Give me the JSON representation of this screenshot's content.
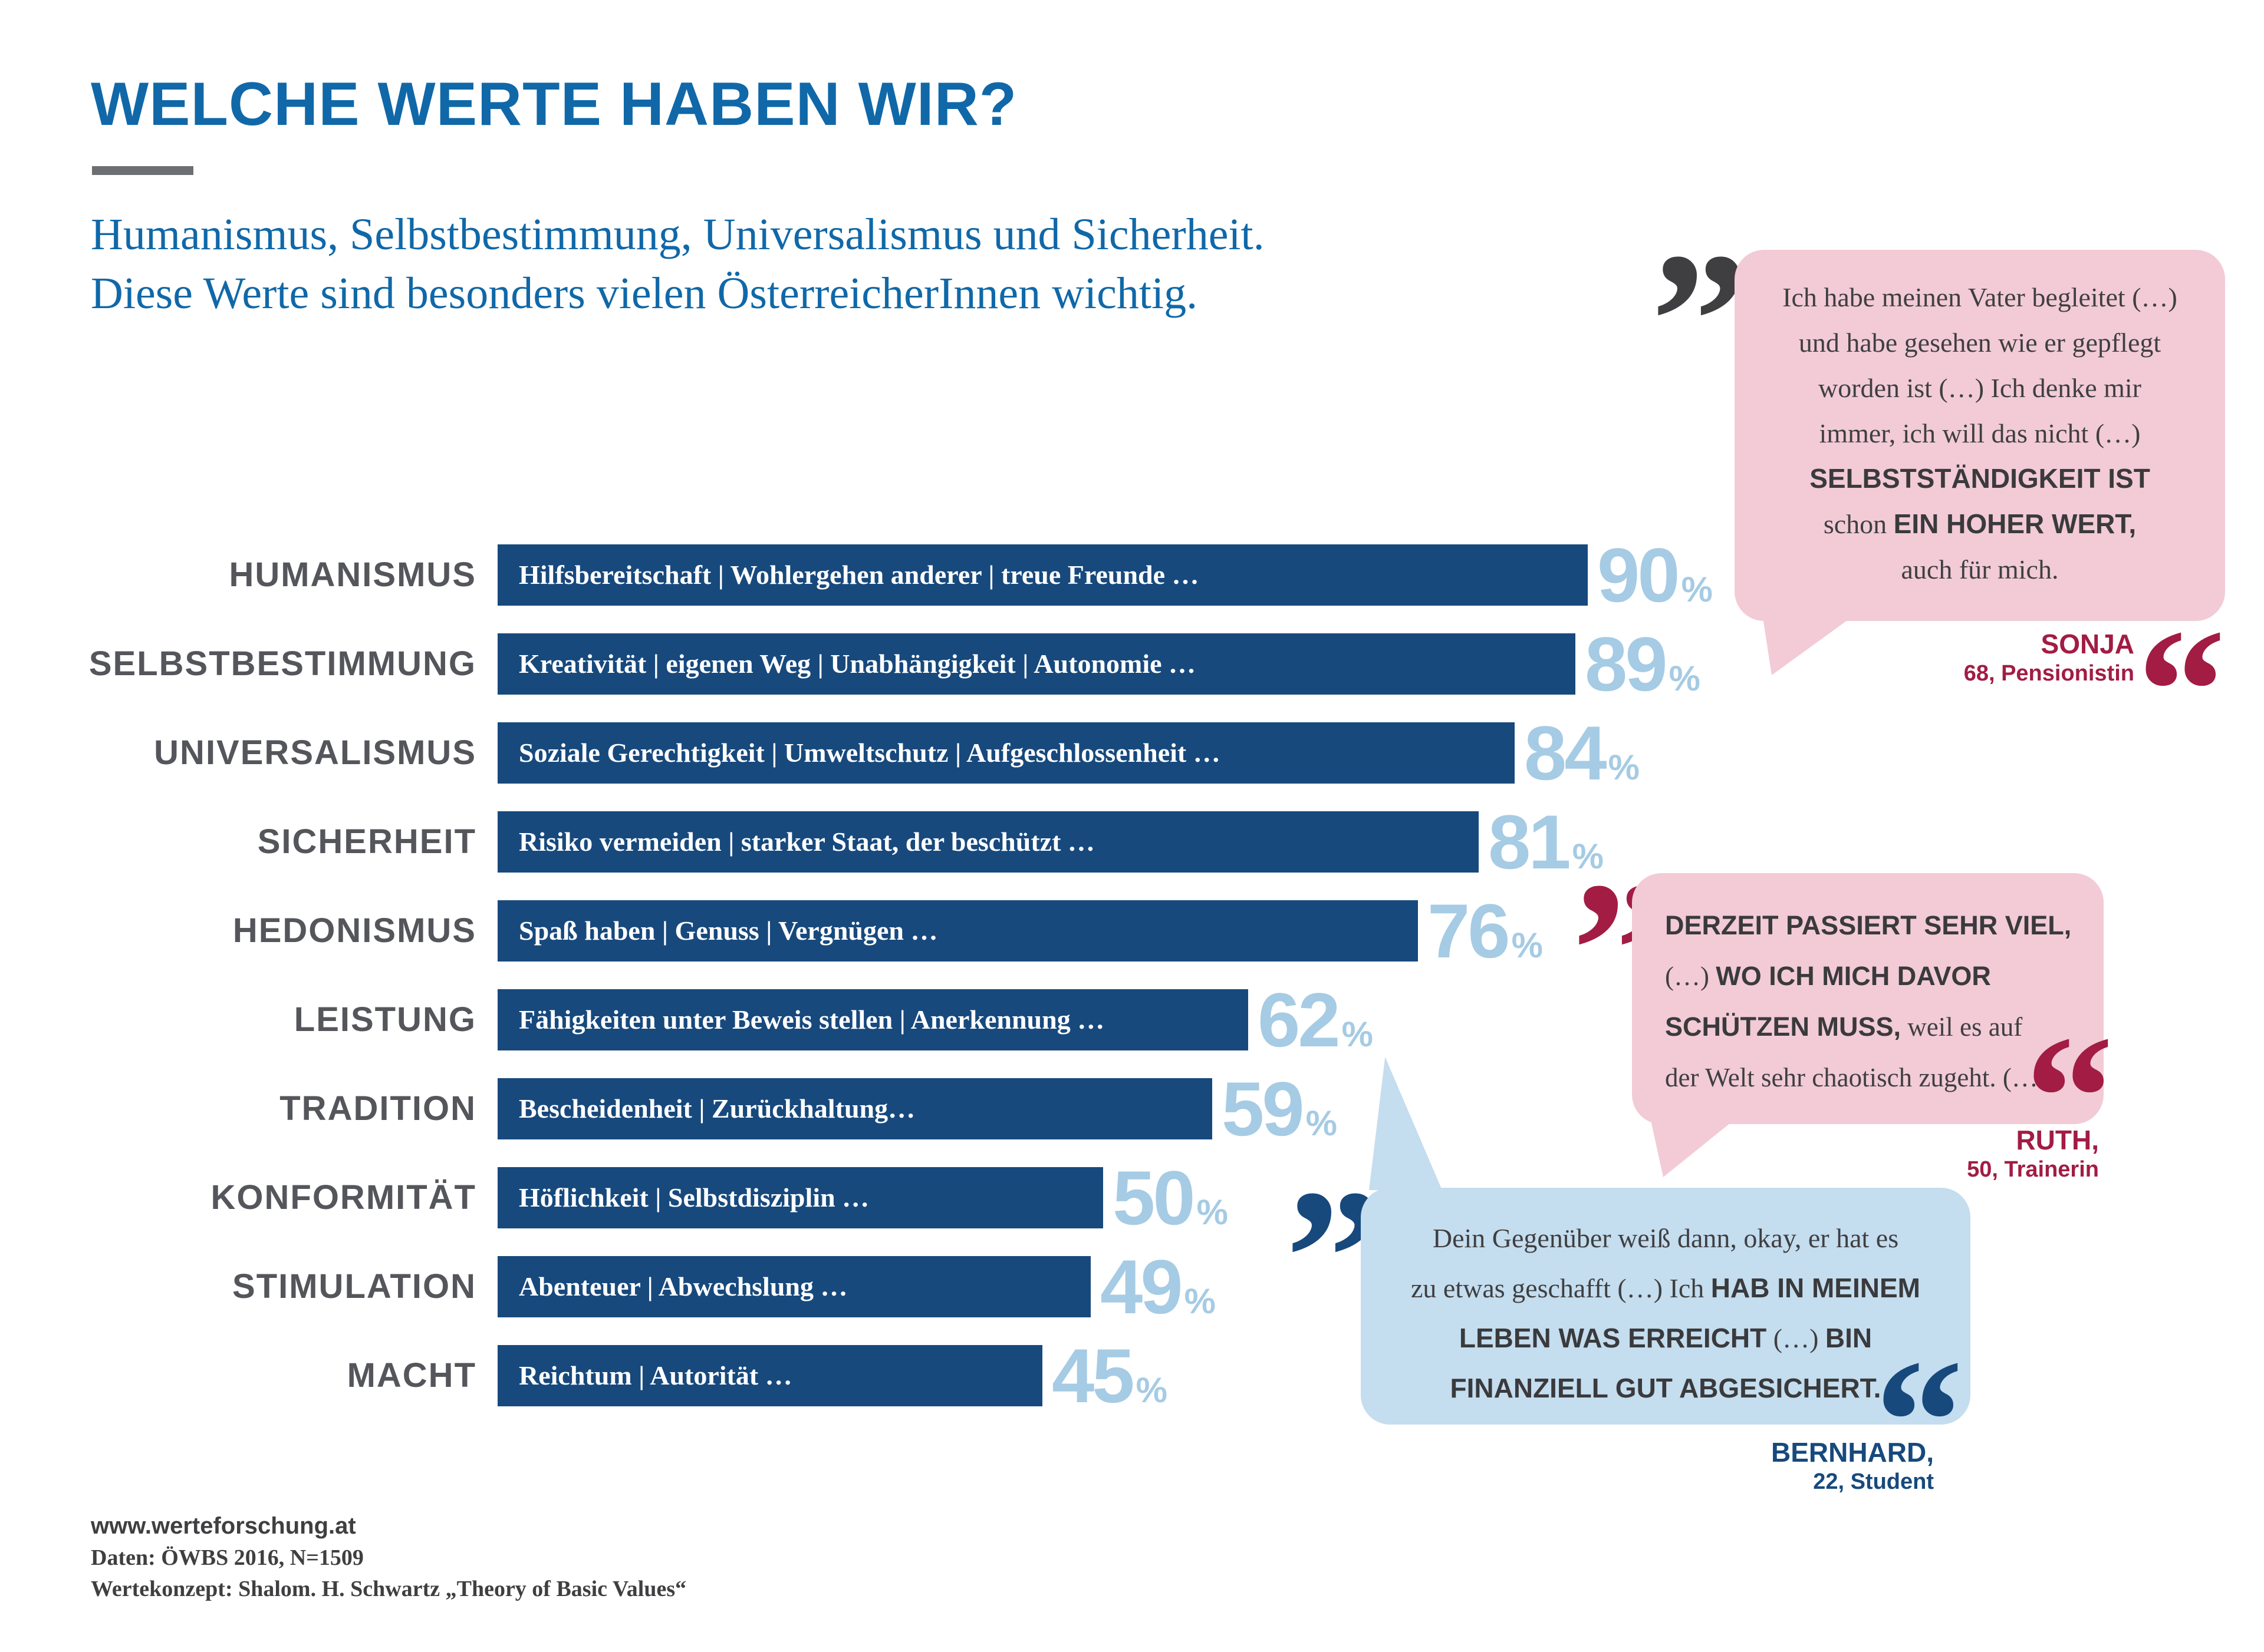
{
  "header": {
    "title": "WELCHE WERTE HABEN WIR?",
    "subtitle1": "Humanismus, Selbstbestimmung, Universalismus und Sicherheit.",
    "subtitle2": "Diese Werte sind besonders vielen ÖsterreicherInnen wichtig."
  },
  "chart_data": {
    "type": "bar",
    "orientation": "horizontal",
    "title": "WELCHE WERTE HABEN WIR?",
    "unit": "%",
    "value_range": [
      0,
      100
    ],
    "categories": [
      "HUMANISMUS",
      "SELBSTBESTIMMUNG",
      "UNIVERSALISMUS",
      "SICHERHEIT",
      "HEDONISMUS",
      "LEISTUNG",
      "TRADITION",
      "KONFORMITÄT",
      "STIMULATION",
      "MACHT"
    ],
    "descriptions": [
      "Hilfsbereitschaft | Wohlergehen anderer | treue Freunde …",
      "Kreativität | eigenen Weg | Unabhängigkeit | Autonomie …",
      "Soziale Gerechtigkeit | Umweltschutz | Aufgeschlossenheit …",
      "Risiko vermeiden | starker Staat, der beschützt …",
      "Spaß haben | Genuss | Vergnügen …",
      "Fähigkeiten unter Beweis stellen | Anerkennung …",
      "Bescheidenheit | Zurückhaltung…",
      "Höflichkeit | Selbstdisziplin …",
      "Abenteuer | Abwechslung …",
      "Reichtum | Autorität …"
    ],
    "values": [
      90,
      89,
      84,
      81,
      76,
      62,
      59,
      50,
      49,
      45
    ],
    "bar_color": "#17497D",
    "value_color": "#A6CBE4",
    "label_color": "#54565B"
  },
  "glyphs": {
    "open": "”",
    "close": "“"
  },
  "quotes": [
    {
      "speaker": "SONJA",
      "speaker_detail": "68, Pensionistin",
      "bubble_color": "#F2CBD7",
      "accent_color": "#A21C44",
      "lines": [
        [
          {
            "t": "Ich habe meinen Vater begleitet (…)"
          }
        ],
        [
          {
            "t": "und habe gesehen wie er gepflegt"
          }
        ],
        [
          {
            "t": "worden ist (…) Ich denke mir"
          }
        ],
        [
          {
            "t": "immer, ich will das nicht (…)"
          }
        ],
        [
          {
            "t": "SELBSTSTÄNDIGKEIT IST",
            "b": true
          }
        ],
        [
          {
            "t": "schon "
          },
          {
            "t": "EIN HOHER WERT,",
            "b": true
          }
        ],
        [
          {
            "t": "auch für mich."
          }
        ]
      ]
    },
    {
      "speaker": "RUTH,",
      "speaker_detail": "50, Trainerin",
      "bubble_color": "#F2CBD7",
      "accent_color": "#A21C44",
      "lines": [
        [
          {
            "t": "DERZEIT PASSIERT SEHR VIEL,",
            "b": true
          }
        ],
        [
          {
            "t": "(…) "
          },
          {
            "t": "WO ICH MICH DAVOR",
            "b": true
          }
        ],
        [
          {
            "t": "SCHÜTZEN MUSS,",
            "b": true
          },
          {
            "t": " weil es auf"
          }
        ],
        [
          {
            "t": "der Welt sehr chaotisch zugeht. (…"
          }
        ]
      ]
    },
    {
      "speaker": "BERNHARD,",
      "speaker_detail": "22, Student",
      "bubble_color": "#C4DDEF",
      "accent_color": "#17497D",
      "lines": [
        [
          {
            "t": "Dein Gegenüber weiß dann, okay, er hat es"
          }
        ],
        [
          {
            "t": "zu etwas geschafft (…) Ich "
          },
          {
            "t": "HAB IN MEINEM",
            "b": true
          }
        ],
        [
          {
            "t": "LEBEN WAS ERREICHT",
            "b": true
          },
          {
            "t": " (…) "
          },
          {
            "t": "BIN",
            "b": true
          }
        ],
        [
          {
            "t": "FINANZIELL GUT ABGESICHERT.",
            "b": true
          }
        ]
      ]
    }
  ],
  "footer": {
    "website": "www.werteforschung.at",
    "data_source": "Daten: ÖWBS 2016, N=1509",
    "concept": "Wertekonzept: Shalom. H. Schwartz „Theory of Basic Values“"
  }
}
